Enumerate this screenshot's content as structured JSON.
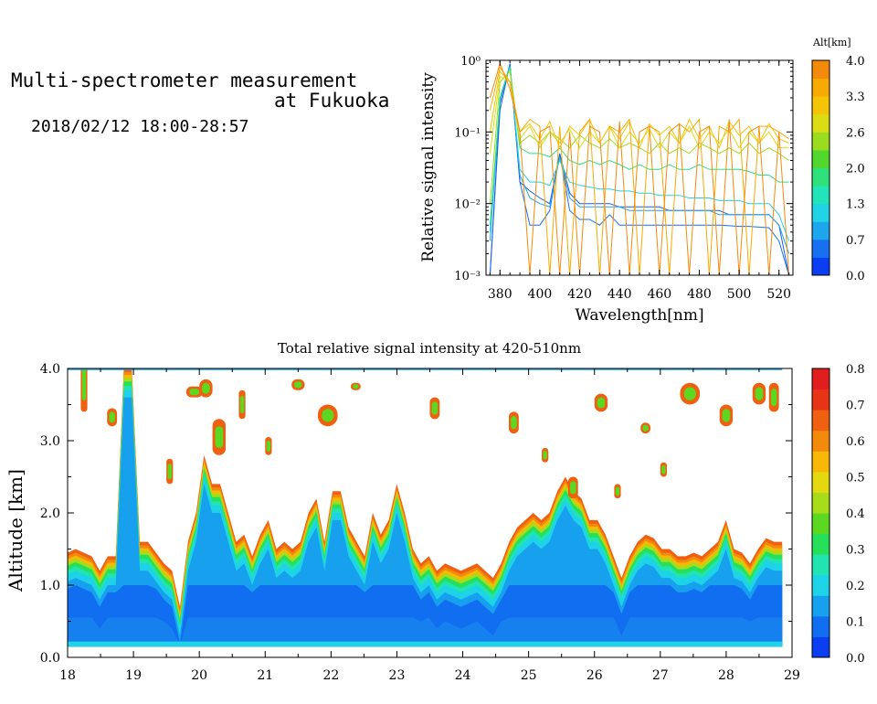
{
  "header": {
    "title_line1": "Multi-spectrometer measurement",
    "title_line2": "at Fukuoka",
    "datetime": "2018/02/12 18:00-28:57"
  },
  "chart_data": [
    {
      "type": "line",
      "xlabel": "Wavelength[nm]",
      "ylabel": "Relative signal intensity",
      "xlim": [
        373,
        527
      ],
      "ylim": [
        0.001,
        1
      ],
      "yscale": "log",
      "x_ticks": [
        380,
        400,
        420,
        440,
        460,
        480,
        500,
        520
      ],
      "y_ticks": [
        "10⁻³",
        "10⁻²",
        "10⁻¹",
        "10⁰"
      ],
      "colorbar": {
        "title": "Alt[km]",
        "tick_labels": [
          "0.0",
          "0.7",
          "1.3",
          "2.0",
          "2.6",
          "3.3",
          "4.0"
        ],
        "colors": [
          "#0b3ef3",
          "#1670f0",
          "#1ca6ee",
          "#20d4e6",
          "#22e4b8",
          "#2ee07a",
          "#52d82c",
          "#9bdc1e",
          "#dcdc14",
          "#f6c406",
          "#f7a904",
          "#f38a0a"
        ]
      },
      "x": [
        375,
        380,
        385,
        390,
        395,
        400,
        405,
        410,
        415,
        420,
        425,
        430,
        435,
        440,
        445,
        450,
        455,
        460,
        465,
        470,
        475,
        480,
        485,
        490,
        495,
        500,
        505,
        510,
        515,
        520,
        525
      ],
      "series": [
        {
          "color": "#1670f0",
          "values": [
            0.001,
            0.2,
            0.9,
            0.02,
            0.005,
            0.005,
            0.008,
            0.05,
            0.008,
            0.006,
            0.006,
            0.005,
            0.007,
            0.005,
            0.005,
            0.005,
            0.005,
            0.005,
            0.005,
            0.005,
            0.005,
            0.005,
            0.005,
            0.005,
            0.0049,
            0.0048,
            0.0048,
            0.0047,
            0.0046,
            0.003,
            0.001
          ]
        },
        {
          "color": "#1c5fe8",
          "values": [
            0.001,
            0.25,
            0.9,
            0.02,
            0.015,
            0.012,
            0.01,
            0.05,
            0.014,
            0.01,
            0.01,
            0.01,
            0.01,
            0.009,
            0.009,
            0.009,
            0.009,
            0.009,
            0.008,
            0.008,
            0.008,
            0.008,
            0.008,
            0.008,
            0.007,
            0.007,
            0.007,
            0.007,
            0.007,
            0.005,
            0.001
          ]
        },
        {
          "color": "#1ca6ee",
          "values": [
            0.003,
            0.3,
            0.85,
            0.025,
            0.012,
            0.01,
            0.009,
            0.045,
            0.012,
            0.009,
            0.009,
            0.009,
            0.009,
            0.009,
            0.008,
            0.008,
            0.008,
            0.008,
            0.008,
            0.008,
            0.008,
            0.008,
            0.008,
            0.007,
            0.007,
            0.007,
            0.007,
            0.007,
            0.007,
            0.005,
            0.002
          ]
        },
        {
          "color": "#20d4e6",
          "values": [
            0.004,
            0.3,
            0.8,
            0.03,
            0.02,
            0.02,
            0.018,
            0.04,
            0.02,
            0.018,
            0.017,
            0.016,
            0.016,
            0.015,
            0.015,
            0.014,
            0.014,
            0.013,
            0.013,
            0.013,
            0.012,
            0.012,
            0.012,
            0.011,
            0.011,
            0.011,
            0.01,
            0.01,
            0.01,
            0.007,
            0.003
          ]
        },
        {
          "color": "#2ee07a",
          "values": [
            0.005,
            0.3,
            0.8,
            0.06,
            0.05,
            0.05,
            0.045,
            0.06,
            0.04,
            0.035,
            0.04,
            0.035,
            0.04,
            0.035,
            0.03,
            0.035,
            0.03,
            0.03,
            0.035,
            0.03,
            0.03,
            0.035,
            0.03,
            0.03,
            0.03,
            0.03,
            0.028,
            0.025,
            0.025,
            0.02,
            0.02
          ]
        },
        {
          "color": "#9bdc1e",
          "values": [
            0.01,
            0.5,
            0.7,
            0.07,
            0.09,
            0.07,
            0.1,
            0.08,
            0.06,
            0.09,
            0.07,
            0.06,
            0.08,
            0.06,
            0.07,
            0.06,
            0.05,
            0.07,
            0.05,
            0.06,
            0.05,
            0.07,
            0.06,
            0.05,
            0.06,
            0.05,
            0.07,
            0.05,
            0.06,
            0.05,
            0.04
          ]
        },
        {
          "color": "#dcdc14",
          "values": [
            0.05,
            0.6,
            0.5,
            0.08,
            0.12,
            0.06,
            0.1,
            0.07,
            0.11,
            0.06,
            0.1,
            0.07,
            0.12,
            0.06,
            0.1,
            0.07,
            0.11,
            0.06,
            0.1,
            0.07,
            0.12,
            0.06,
            0.1,
            0.07,
            0.11,
            0.06,
            0.1,
            0.07,
            0.1,
            0.06,
            0.06
          ]
        },
        {
          "color": "#f6c406",
          "values": [
            0.1,
            0.7,
            0.5,
            0.1,
            0.13,
            0.08,
            0.14,
            0.06,
            0.12,
            0.09,
            0.15,
            0.07,
            0.12,
            0.08,
            0.14,
            0.06,
            0.13,
            0.09,
            0.12,
            0.07,
            0.15,
            0.08,
            0.12,
            0.06,
            0.14,
            0.09,
            0.12,
            0.07,
            0.13,
            0.08,
            0.07
          ]
        },
        {
          "color": "#f7a904",
          "values": [
            0.2,
            0.8,
            0.5,
            0.1,
            0.15,
            0.12,
            0.001,
            0.12,
            0.001,
            0.1,
            0.15,
            0.001,
            0.12,
            0.1,
            0.15,
            0.001,
            0.12,
            0.1,
            0.001,
            0.13,
            0.1,
            0.15,
            0.001,
            0.12,
            0.1,
            0.15,
            0.001,
            0.12,
            0.12,
            0.1,
            0.08
          ]
        },
        {
          "color": "#f38a0a",
          "values": [
            0.3,
            0.9,
            0.4,
            0.1,
            0.001,
            0.1,
            0.12,
            0.001,
            0.1,
            0.001,
            0.12,
            0.1,
            0.001,
            0.14,
            0.001,
            0.1,
            0.12,
            0.001,
            0.1,
            0.13,
            0.001,
            0.1,
            0.12,
            0.001,
            0.15,
            0.001,
            0.1,
            0.12,
            0.001,
            0.1,
            0.001
          ]
        }
      ]
    },
    {
      "type": "heatmap",
      "title": "Total relative signal intensity at 420-510nm",
      "ylabel": "Altitude [km]",
      "xlim": [
        18,
        29
      ],
      "ylim": [
        0,
        4
      ],
      "x_ticks": [
        18,
        19,
        20,
        21,
        22,
        23,
        24,
        25,
        26,
        27,
        28,
        29
      ],
      "y_tick_labels": [
        "0.0",
        "1.0",
        "2.0",
        "3.0",
        "4.0"
      ],
      "colorbar": {
        "tick_labels": [
          "0.0",
          "0.1",
          "0.2",
          "0.3",
          "0.4",
          "0.5",
          "0.6",
          "0.7",
          "0.8"
        ],
        "colors": [
          "#0a3ef0",
          "#116ef0",
          "#17a0ee",
          "#1ed2e8",
          "#21e4b0",
          "#27e05a",
          "#5cd820",
          "#a8dc18",
          "#e4d810",
          "#f8b808",
          "#f48a0c",
          "#ef6010",
          "#e83416",
          "#e01e1e"
        ]
      },
      "data_end_hour": 28.85,
      "bottom_km": 0.15,
      "cloud_base_km": [
        1.45,
        1.5,
        1.45,
        1.4,
        1.2,
        1.4,
        1.4,
        4.0,
        4.0,
        1.6,
        1.6,
        1.45,
        1.3,
        1.2,
        0.7,
        1.6,
        2.0,
        2.8,
        2.4,
        2.4,
        2.0,
        1.6,
        1.7,
        1.4,
        1.7,
        1.9,
        1.5,
        1.6,
        1.5,
        1.6,
        2.0,
        2.2,
        1.6,
        2.3,
        2.3,
        1.8,
        1.6,
        1.4,
        2.0,
        1.7,
        1.9,
        2.4,
        2.0,
        1.5,
        1.3,
        1.4,
        1.2,
        1.3,
        1.25,
        1.2,
        1.25,
        1.3,
        1.2,
        1.1,
        1.3,
        1.6,
        1.8,
        1.9,
        2.0,
        1.9,
        2.0,
        2.3,
        2.5,
        2.3,
        2.2,
        1.9,
        1.9,
        1.7,
        1.4,
        1.1,
        1.4,
        1.6,
        1.7,
        1.65,
        1.5,
        1.5,
        1.4,
        1.4,
        1.45,
        1.4,
        1.5,
        1.6,
        1.9,
        1.5,
        1.45,
        1.3,
        1.5,
        1.65,
        1.6,
        1.6
      ],
      "cloud_patches": [
        {
          "x": 18.2,
          "y": 3.4,
          "w": 0.1,
          "h": 0.8
        },
        {
          "x": 18.6,
          "y": 3.2,
          "w": 0.15,
          "h": 0.25
        },
        {
          "x": 19.5,
          "y": 2.4,
          "w": 0.1,
          "h": 0.35
        },
        {
          "x": 19.8,
          "y": 3.6,
          "w": 0.25,
          "h": 0.15
        },
        {
          "x": 20.0,
          "y": 3.6,
          "w": 0.2,
          "h": 0.25
        },
        {
          "x": 20.2,
          "y": 2.8,
          "w": 0.2,
          "h": 0.5
        },
        {
          "x": 20.6,
          "y": 3.3,
          "w": 0.1,
          "h": 0.4
        },
        {
          "x": 21.0,
          "y": 2.8,
          "w": 0.1,
          "h": 0.25
        },
        {
          "x": 21.4,
          "y": 3.7,
          "w": 0.2,
          "h": 0.15
        },
        {
          "x": 21.8,
          "y": 3.2,
          "w": 0.3,
          "h": 0.3
        },
        {
          "x": 22.3,
          "y": 3.7,
          "w": 0.15,
          "h": 0.1
        },
        {
          "x": 23.5,
          "y": 3.3,
          "w": 0.15,
          "h": 0.3
        },
        {
          "x": 24.7,
          "y": 3.1,
          "w": 0.15,
          "h": 0.3
        },
        {
          "x": 25.2,
          "y": 2.7,
          "w": 0.1,
          "h": 0.2
        },
        {
          "x": 25.6,
          "y": 2.2,
          "w": 0.15,
          "h": 0.3
        },
        {
          "x": 26.0,
          "y": 3.4,
          "w": 0.2,
          "h": 0.25
        },
        {
          "x": 26.7,
          "y": 3.1,
          "w": 0.15,
          "h": 0.15
        },
        {
          "x": 27.3,
          "y": 3.5,
          "w": 0.3,
          "h": 0.3
        },
        {
          "x": 27.9,
          "y": 3.2,
          "w": 0.2,
          "h": 0.3
        },
        {
          "x": 28.4,
          "y": 3.5,
          "w": 0.2,
          "h": 0.3
        },
        {
          "x": 28.65,
          "y": 3.4,
          "w": 0.15,
          "h": 0.4
        },
        {
          "x": 26.3,
          "y": 2.2,
          "w": 0.1,
          "h": 0.2
        },
        {
          "x": 27.0,
          "y": 2.5,
          "w": 0.1,
          "h": 0.2
        }
      ]
    }
  ]
}
